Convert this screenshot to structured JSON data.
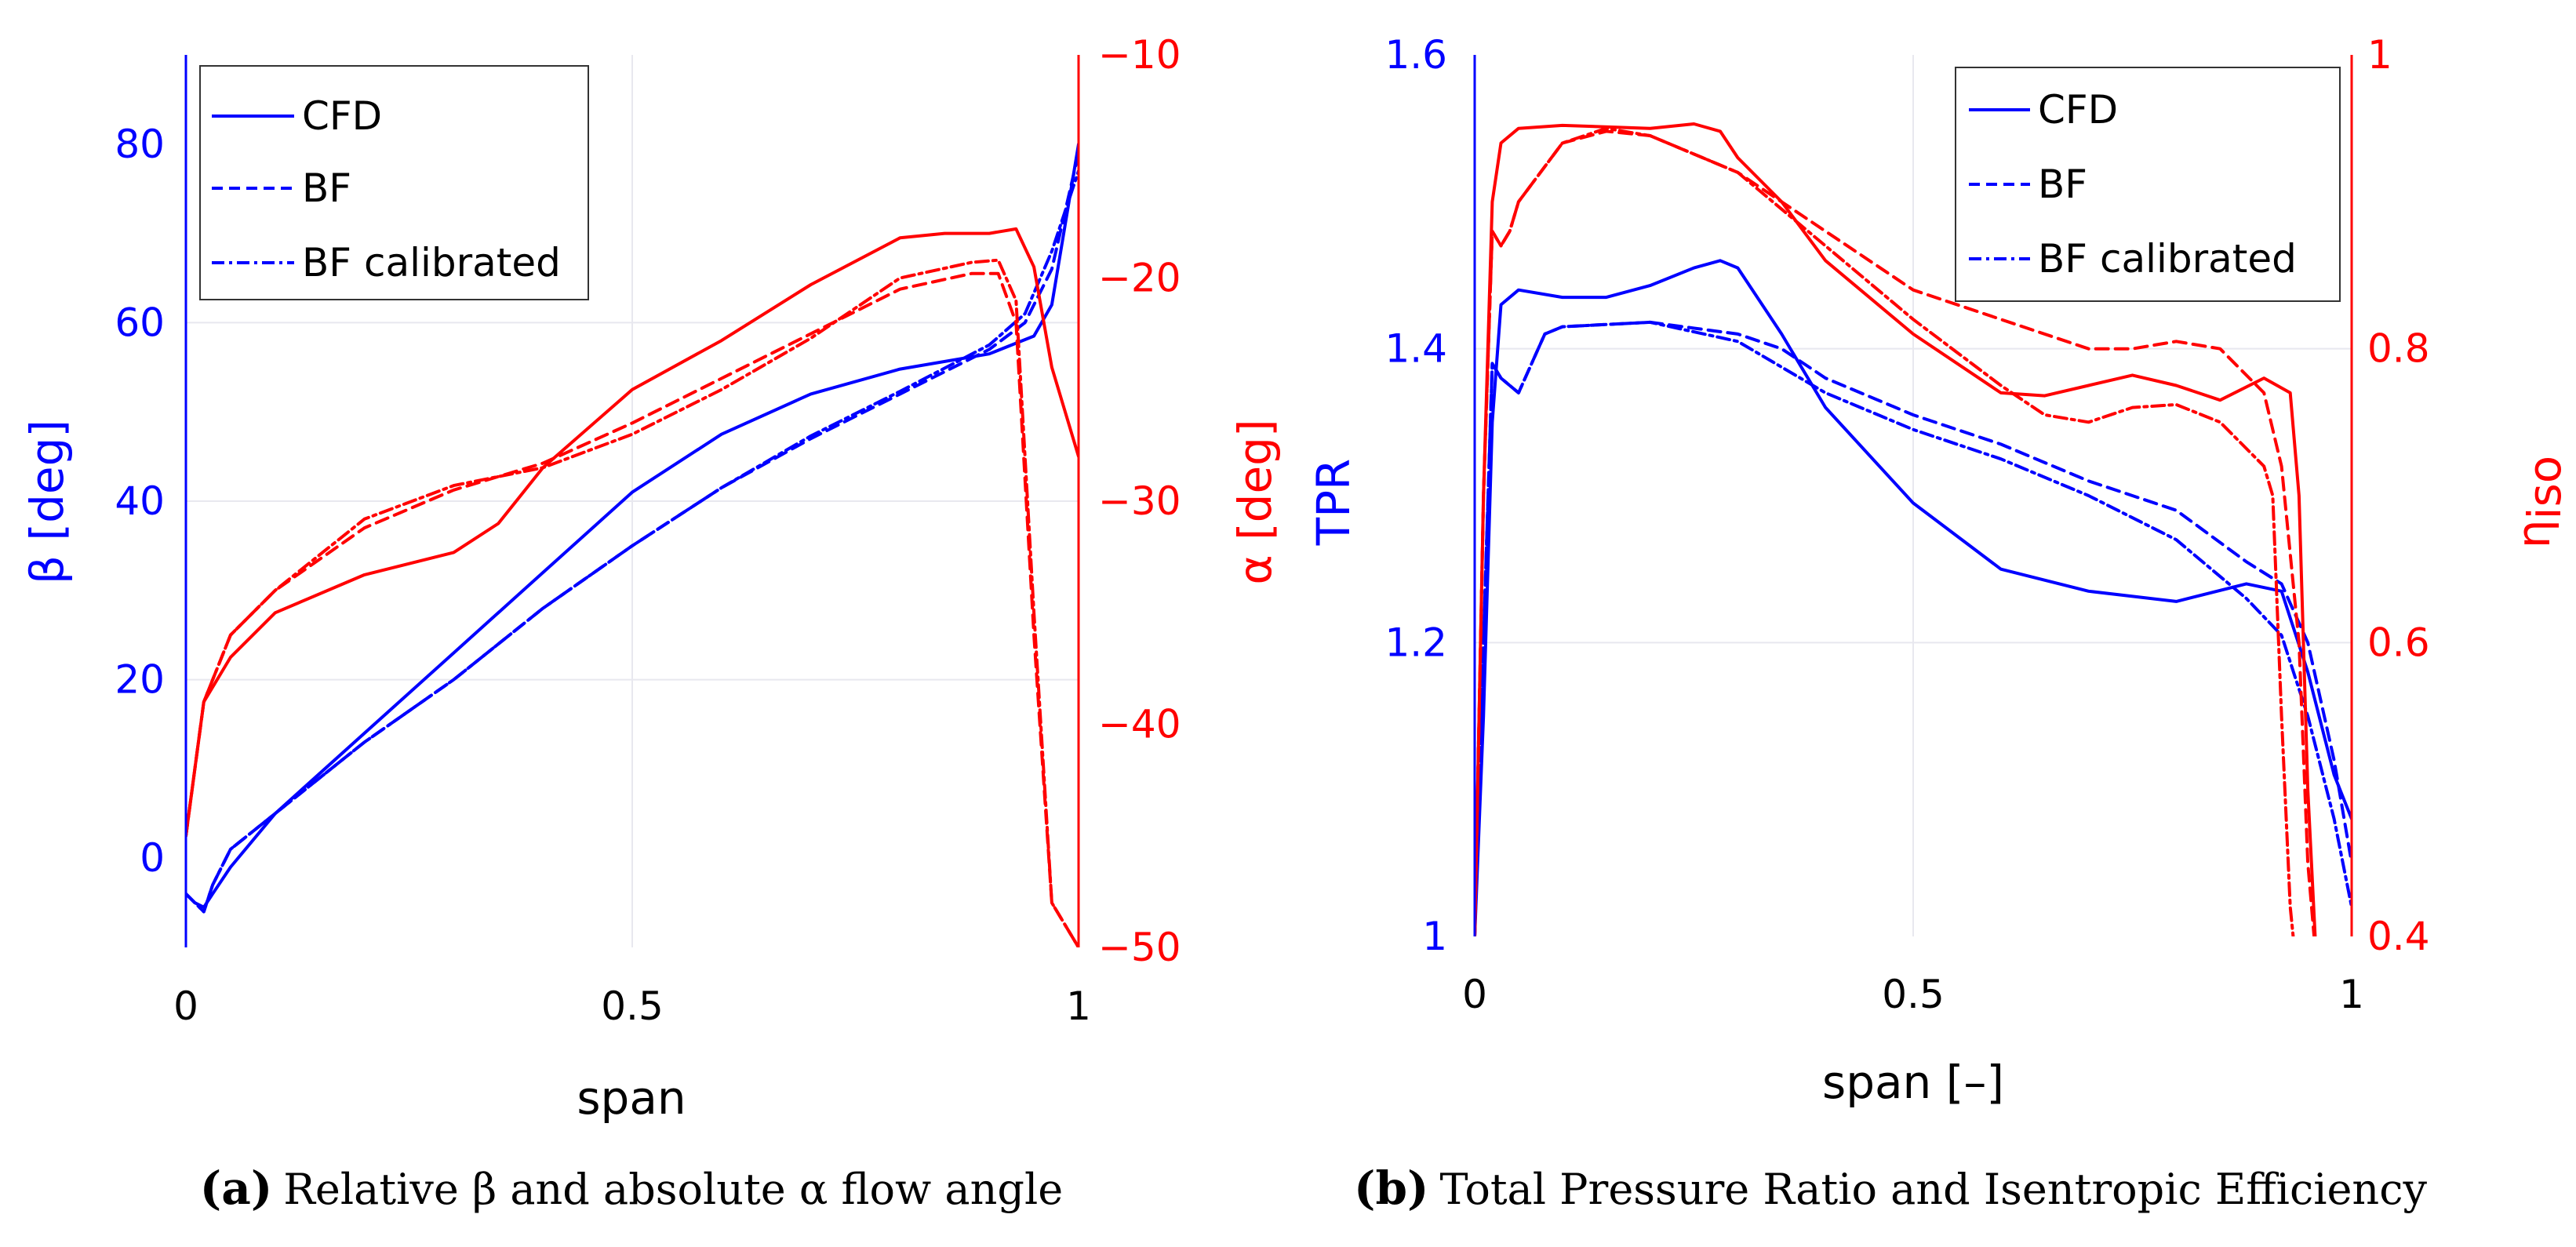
{
  "chart_data": [
    {
      "type": "line",
      "panel": "a",
      "caption_letter": "(a)",
      "caption_text": "Relative β and absolute α flow angle",
      "xlabel": "span",
      "ylabel_left": "β [deg]",
      "ylabel_right": "α [deg]",
      "xlim": [
        0,
        1
      ],
      "ylim_left": [
        -10,
        90
      ],
      "ylim_right": [
        -50,
        -10
      ],
      "xticks": [
        0,
        0.5,
        1
      ],
      "xtick_labels": [
        "0",
        "0.5",
        "1"
      ],
      "yticks_left": [
        0,
        20,
        40,
        60,
        80
      ],
      "yticks_right": [
        -50,
        -40,
        -30,
        -20,
        -10
      ],
      "legend": [
        {
          "label": "CFD",
          "style": "solid"
        },
        {
          "label": "BF",
          "style": "dashed"
        },
        {
          "label": "BF calibrated",
          "style": "dashdot"
        }
      ],
      "series": [
        {
          "name": "CFD",
          "axis": "left",
          "color": "#0000ff",
          "style": "solid",
          "x": [
            0,
            0.01,
            0.02,
            0.03,
            0.05,
            0.1,
            0.2,
            0.3,
            0.4,
            0.5,
            0.6,
            0.7,
            0.8,
            0.9,
            0.95,
            0.97,
            1.0
          ],
          "y": [
            -4,
            -5,
            -5.5,
            -4,
            -1,
            5,
            14,
            23,
            32,
            41,
            47.5,
            52,
            54.8,
            56.5,
            58.5,
            62,
            80
          ]
        },
        {
          "name": "BF",
          "axis": "left",
          "color": "#0000ff",
          "style": "dashed",
          "x": [
            0,
            0.01,
            0.02,
            0.03,
            0.05,
            0.1,
            0.2,
            0.3,
            0.4,
            0.5,
            0.6,
            0.7,
            0.8,
            0.9,
            0.94,
            0.97,
            1.0
          ],
          "y": [
            -4,
            -5,
            -6,
            -3,
            1,
            5,
            13,
            20,
            28,
            35,
            41.5,
            47,
            52,
            57,
            60,
            66,
            79
          ]
        },
        {
          "name": "BF calibrated",
          "axis": "left",
          "color": "#0000ff",
          "style": "dashdot",
          "x": [
            0,
            0.01,
            0.02,
            0.03,
            0.05,
            0.1,
            0.2,
            0.3,
            0.4,
            0.5,
            0.6,
            0.7,
            0.8,
            0.9,
            0.94,
            0.97,
            1.0
          ],
          "y": [
            -4,
            -5,
            -6,
            -3,
            1,
            5,
            13,
            20,
            28,
            35,
            41.5,
            47.3,
            52.3,
            57.5,
            61,
            68,
            77
          ]
        },
        {
          "name": "CFD",
          "axis": "right",
          "color": "#ff0000",
          "style": "solid",
          "x": [
            0,
            0.02,
            0.05,
            0.1,
            0.2,
            0.3,
            0.35,
            0.4,
            0.5,
            0.6,
            0.7,
            0.8,
            0.85,
            0.9,
            0.93,
            0.95,
            0.97,
            1.0
          ],
          "y": [
            -45,
            -39,
            -37,
            -35,
            -33.3,
            -32.3,
            -31,
            -28.5,
            -25,
            -22.8,
            -20.3,
            -18.2,
            -18,
            -18,
            -17.8,
            -19.5,
            -24,
            -28
          ]
        },
        {
          "name": "BF",
          "axis": "right",
          "color": "#ff0000",
          "style": "dashed",
          "x": [
            0,
            0.02,
            0.05,
            0.1,
            0.2,
            0.3,
            0.4,
            0.5,
            0.6,
            0.7,
            0.8,
            0.88,
            0.91,
            0.93,
            0.95,
            0.97,
            1.0
          ],
          "y": [
            -45,
            -39,
            -36,
            -34,
            -31.2,
            -29.5,
            -28.3,
            -26.5,
            -24.5,
            -22.5,
            -20.5,
            -19.8,
            -19.8,
            -22,
            -36,
            -48,
            -50
          ]
        },
        {
          "name": "BF calibrated",
          "axis": "right",
          "color": "#ff0000",
          "style": "dashdot",
          "x": [
            0,
            0.02,
            0.05,
            0.1,
            0.2,
            0.3,
            0.4,
            0.5,
            0.6,
            0.7,
            0.8,
            0.88,
            0.91,
            0.93,
            0.95,
            0.97,
            1.0
          ],
          "y": [
            -45,
            -39,
            -36,
            -34,
            -30.8,
            -29.3,
            -28.5,
            -27,
            -25,
            -22.7,
            -20,
            -19.3,
            -19.2,
            -21,
            -35,
            -48,
            -50
          ]
        }
      ]
    },
    {
      "type": "line",
      "panel": "b",
      "caption_letter": "(b)",
      "caption_text": "Total Pressure Ratio and Isentropic Efficiency",
      "xlabel": "span [–]",
      "ylabel_left": "TPR",
      "ylabel_right": "η_iso",
      "ylabel_right_main": "η",
      "ylabel_right_sub": "iso",
      "xlim": [
        0,
        1
      ],
      "ylim_left": [
        1,
        1.6
      ],
      "ylim_right": [
        0.4,
        1
      ],
      "xticks": [
        0,
        0.5,
        1
      ],
      "xtick_labels": [
        "0",
        "0.5",
        "1"
      ],
      "yticks_left": [
        1,
        1.2,
        1.4,
        1.6
      ],
      "ytick_labels_left": [
        "1",
        "1.2",
        "1.4",
        "1.6"
      ],
      "yticks_right": [
        0.4,
        0.6,
        0.8,
        1
      ],
      "ytick_labels_right": [
        "0.4",
        "0.6",
        "0.8",
        "1"
      ],
      "legend": [
        {
          "label": "CFD",
          "style": "solid"
        },
        {
          "label": "BF",
          "style": "dashed"
        },
        {
          "label": "BF calibrated",
          "style": "dashdot"
        }
      ],
      "series": [
        {
          "name": "CFD",
          "axis": "left",
          "color": "#0000ff",
          "style": "solid",
          "x": [
            0,
            0.01,
            0.02,
            0.03,
            0.05,
            0.1,
            0.15,
            0.2,
            0.25,
            0.28,
            0.3,
            0.35,
            0.4,
            0.5,
            0.6,
            0.7,
            0.8,
            0.88,
            0.92,
            0.95,
            0.98,
            1.0
          ],
          "y": [
            1.0,
            1.15,
            1.35,
            1.43,
            1.44,
            1.435,
            1.435,
            1.443,
            1.455,
            1.46,
            1.455,
            1.41,
            1.36,
            1.295,
            1.25,
            1.235,
            1.228,
            1.24,
            1.235,
            1.18,
            1.11,
            1.08
          ]
        },
        {
          "name": "BF",
          "axis": "left",
          "color": "#0000ff",
          "style": "dashed",
          "x": [
            0,
            0.01,
            0.02,
            0.03,
            0.05,
            0.08,
            0.1,
            0.2,
            0.3,
            0.35,
            0.4,
            0.5,
            0.6,
            0.7,
            0.8,
            0.88,
            0.92,
            0.95,
            0.98,
            1.0
          ],
          "y": [
            1.0,
            1.2,
            1.39,
            1.38,
            1.37,
            1.41,
            1.415,
            1.418,
            1.41,
            1.4,
            1.38,
            1.355,
            1.335,
            1.31,
            1.29,
            1.255,
            1.24,
            1.2,
            1.12,
            1.05
          ]
        },
        {
          "name": "BF calibrated",
          "axis": "left",
          "color": "#0000ff",
          "style": "dashdot",
          "x": [
            0,
            0.01,
            0.02,
            0.03,
            0.05,
            0.08,
            0.1,
            0.2,
            0.3,
            0.4,
            0.5,
            0.6,
            0.7,
            0.8,
            0.88,
            0.92,
            0.95,
            0.98,
            1.0
          ],
          "y": [
            1.0,
            1.2,
            1.39,
            1.38,
            1.37,
            1.41,
            1.415,
            1.418,
            1.405,
            1.37,
            1.345,
            1.325,
            1.3,
            1.27,
            1.23,
            1.205,
            1.15,
            1.08,
            1.02
          ]
        },
        {
          "name": "CFD",
          "axis": "right",
          "color": "#ff0000",
          "style": "solid",
          "x": [
            0,
            0.01,
            0.02,
            0.03,
            0.05,
            0.1,
            0.2,
            0.25,
            0.28,
            0.3,
            0.35,
            0.4,
            0.5,
            0.6,
            0.65,
            0.7,
            0.75,
            0.8,
            0.85,
            0.9,
            0.93,
            0.94,
            0.95,
            0.96
          ],
          "y": [
            0.4,
            0.7,
            0.9,
            0.94,
            0.95,
            0.952,
            0.95,
            0.953,
            0.948,
            0.93,
            0.9,
            0.86,
            0.81,
            0.77,
            0.768,
            0.775,
            0.782,
            0.775,
            0.765,
            0.78,
            0.77,
            0.7,
            0.5,
            0.38
          ]
        },
        {
          "name": "BF",
          "axis": "right",
          "color": "#ff0000",
          "style": "dashed",
          "x": [
            0,
            0.01,
            0.02,
            0.03,
            0.04,
            0.05,
            0.1,
            0.15,
            0.2,
            0.3,
            0.4,
            0.5,
            0.6,
            0.7,
            0.75,
            0.8,
            0.85,
            0.9,
            0.92,
            0.94,
            0.95,
            0.96
          ],
          "y": [
            0.4,
            0.7,
            0.88,
            0.87,
            0.88,
            0.9,
            0.94,
            0.948,
            0.945,
            0.92,
            0.88,
            0.84,
            0.82,
            0.8,
            0.8,
            0.805,
            0.8,
            0.77,
            0.72,
            0.6,
            0.45,
            0.38
          ]
        },
        {
          "name": "BF calibrated",
          "axis": "right",
          "color": "#ff0000",
          "style": "dashdot",
          "x": [
            0,
            0.01,
            0.02,
            0.03,
            0.04,
            0.05,
            0.1,
            0.15,
            0.2,
            0.3,
            0.4,
            0.5,
            0.6,
            0.65,
            0.7,
            0.75,
            0.8,
            0.85,
            0.9,
            0.91,
            0.92,
            0.93,
            0.94
          ],
          "y": [
            0.4,
            0.7,
            0.88,
            0.87,
            0.88,
            0.9,
            0.94,
            0.95,
            0.945,
            0.92,
            0.87,
            0.82,
            0.775,
            0.755,
            0.75,
            0.76,
            0.762,
            0.75,
            0.72,
            0.7,
            0.55,
            0.42,
            0.36
          ]
        }
      ]
    }
  ]
}
